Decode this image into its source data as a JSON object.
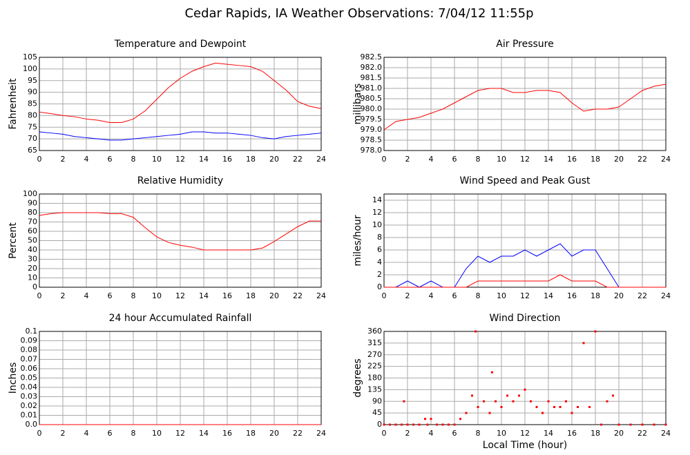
{
  "title": "Cedar Rapids, IA Weather Observations: 7/04/12 11:55p",
  "chart_data": [
    {
      "type": "line",
      "title": "Temperature and Dewpoint",
      "ylabel": "Fahrenheit",
      "x": [
        0,
        1,
        2,
        3,
        4,
        5,
        6,
        7,
        8,
        9,
        10,
        11,
        12,
        13,
        14,
        15,
        16,
        17,
        18,
        19,
        20,
        21,
        22,
        23,
        24
      ],
      "series": [
        {
          "color": "#ff0000",
          "values": [
            81.5,
            80.8,
            80,
            79.5,
            78.5,
            78,
            77,
            77,
            78.5,
            82,
            87,
            92,
            96,
            99,
            101,
            102.5,
            102,
            101.5,
            101,
            99,
            95,
            91,
            86,
            84,
            83
          ]
        },
        {
          "color": "#0000ff",
          "values": [
            73,
            72.5,
            72,
            71,
            70.5,
            70,
            69.5,
            69.5,
            70,
            70.5,
            71,
            71.5,
            72,
            73,
            73,
            72.5,
            72.5,
            72,
            71.5,
            70.5,
            70,
            71,
            71.5,
            72,
            72.5
          ]
        }
      ],
      "xlim": [
        0,
        24
      ],
      "xticks": [
        0,
        2,
        4,
        6,
        8,
        10,
        12,
        14,
        16,
        18,
        20,
        22,
        24
      ],
      "ylim": [
        65,
        105
      ],
      "yticks": [
        65,
        70,
        75,
        80,
        85,
        90,
        95,
        100,
        105
      ],
      "grid": true
    },
    {
      "type": "line",
      "title": "Air Pressure",
      "ylabel": "millibars",
      "x": [
        0,
        1,
        2,
        3,
        4,
        5,
        6,
        7,
        8,
        9,
        10,
        11,
        12,
        13,
        14,
        15,
        16,
        17,
        18,
        19,
        20,
        21,
        22,
        23,
        24
      ],
      "series": [
        {
          "color": "#ff0000",
          "values": [
            979,
            979.4,
            979.5,
            979.6,
            979.8,
            980,
            980.3,
            980.6,
            980.9,
            981,
            981,
            980.8,
            980.8,
            980.9,
            980.9,
            980.8,
            980.3,
            979.9,
            980,
            980,
            980.1,
            980.5,
            980.9,
            981.1,
            981.2
          ]
        }
      ],
      "xlim": [
        0,
        24
      ],
      "xticks": [
        0,
        2,
        4,
        6,
        8,
        10,
        12,
        14,
        16,
        18,
        20,
        22,
        24
      ],
      "ylim": [
        978,
        982.5
      ],
      "yticks": [
        {
          "value": 978,
          "label": "978.0"
        },
        978.5,
        {
          "value": 979,
          "label": "979.0"
        },
        979.5,
        {
          "value": 980,
          "label": "980.0"
        },
        980.5,
        {
          "value": 981,
          "label": "981.0"
        },
        981.5,
        {
          "value": 982,
          "label": "982.0"
        },
        982.5
      ],
      "grid": true
    },
    {
      "type": "line",
      "title": "Relative Humidity",
      "ylabel": "Percent",
      "x": [
        0,
        1,
        2,
        3,
        4,
        5,
        6,
        7,
        8,
        9,
        10,
        11,
        12,
        13,
        14,
        15,
        16,
        17,
        18,
        19,
        20,
        21,
        22,
        23,
        24
      ],
      "series": [
        {
          "color": "#ff0000",
          "values": [
            77,
            79,
            80,
            80,
            80,
            80,
            79,
            79,
            75,
            64,
            54,
            48,
            45,
            43,
            40,
            40,
            40,
            40,
            40,
            42,
            49,
            57,
            65,
            71,
            71
          ]
        }
      ],
      "xlim": [
        0,
        24
      ],
      "xticks": [
        0,
        2,
        4,
        6,
        8,
        10,
        12,
        14,
        16,
        18,
        20,
        22,
        24
      ],
      "ylim": [
        0,
        100
      ],
      "yticks": [
        0,
        10,
        20,
        30,
        40,
        50,
        60,
        70,
        80,
        90,
        100
      ],
      "grid": true
    },
    {
      "type": "line",
      "title": "Wind Speed and Peak Gust",
      "ylabel": "miles/hour",
      "x": [
        0,
        1,
        2,
        3,
        4,
        5,
        6,
        7,
        8,
        9,
        10,
        11,
        12,
        13,
        14,
        15,
        16,
        17,
        18,
        19,
        20,
        21,
        22,
        23,
        24
      ],
      "series": [
        {
          "color": "#0000ff",
          "values": [
            0,
            0,
            1,
            0,
            1,
            0,
            0,
            3,
            5,
            4,
            5,
            5,
            6,
            5,
            6,
            7,
            5,
            6,
            6,
            3,
            0,
            0,
            0,
            0,
            0
          ]
        },
        {
          "color": "#ff0000",
          "values": [
            0,
            0,
            0,
            0,
            0,
            0,
            0,
            0,
            1,
            1,
            1,
            1,
            1,
            1,
            1,
            2,
            1,
            1,
            1,
            0,
            0,
            0,
            0,
            0,
            0
          ]
        }
      ],
      "xlim": [
        0,
        24
      ],
      "xticks": [
        0,
        2,
        4,
        6,
        8,
        10,
        12,
        14,
        16,
        18,
        20,
        22,
        24
      ],
      "ylim": [
        0,
        15
      ],
      "yticks": [
        0,
        2,
        4,
        6,
        8,
        10,
        12,
        14
      ],
      "grid": true
    },
    {
      "type": "line",
      "title": "24 hour Accumulated Rainfall",
      "ylabel": "Inches",
      "x": [
        0,
        1,
        2,
        3,
        4,
        5,
        6,
        7,
        8,
        9,
        10,
        11,
        12,
        13,
        14,
        15,
        16,
        17,
        18,
        19,
        20,
        21,
        22,
        23,
        24
      ],
      "series": [
        {
          "color": "#ff0000",
          "values": [
            0,
            0,
            0,
            0,
            0,
            0,
            0,
            0,
            0,
            0,
            0,
            0,
            0,
            0,
            0,
            0,
            0,
            0,
            0,
            0,
            0,
            0,
            0,
            0,
            0
          ]
        }
      ],
      "xlim": [
        0,
        24
      ],
      "xticks": [
        0,
        2,
        4,
        6,
        8,
        10,
        12,
        14,
        16,
        18,
        20,
        22,
        24
      ],
      "ylim": [
        0,
        0.1
      ],
      "yticks": [
        {
          "value": 0,
          "label": "0.0"
        },
        0.01,
        0.02,
        0.03,
        0.04,
        0.05,
        0.06,
        0.07,
        0.08,
        0.09,
        0.1
      ],
      "grid": true
    },
    {
      "type": "scatter",
      "title": "Wind Direction",
      "ylabel": "degrees",
      "xlabel": "Local Time (hour)",
      "x": [
        0,
        0.5,
        1,
        1.5,
        1.7,
        2,
        2.5,
        3,
        3.5,
        3.7,
        4,
        4.5,
        5,
        5.5,
        6,
        6.5,
        7,
        7.5,
        7.8,
        8,
        8.5,
        9,
        9.2,
        9.5,
        10,
        10.5,
        11,
        11.5,
        12,
        12.5,
        13,
        13.5,
        14,
        14.5,
        15,
        15.5,
        16,
        16.5,
        17,
        17.5,
        18,
        18.5,
        19,
        19.5,
        20,
        21,
        22,
        23,
        24
      ],
      "series": [
        {
          "color": "#ff0000",
          "values": [
            0,
            0,
            0,
            0,
            90,
            0,
            0,
            0,
            22,
            0,
            22,
            0,
            0,
            0,
            0,
            22,
            45,
            112,
            360,
            68,
            90,
            45,
            202,
            90,
            68,
            112,
            90,
            112,
            135,
            90,
            68,
            45,
            90,
            68,
            68,
            90,
            45,
            68,
            315,
            68,
            360,
            0,
            90,
            112,
            0,
            0,
            0,
            0,
            0
          ]
        }
      ],
      "xlim": [
        0,
        24
      ],
      "xticks": [
        0,
        2,
        4,
        6,
        8,
        10,
        12,
        14,
        16,
        18,
        20,
        22,
        24
      ],
      "ylim": [
        0,
        360
      ],
      "yticks": [
        0,
        45,
        90,
        135,
        180,
        225,
        270,
        315,
        360
      ],
      "grid": true
    }
  ]
}
